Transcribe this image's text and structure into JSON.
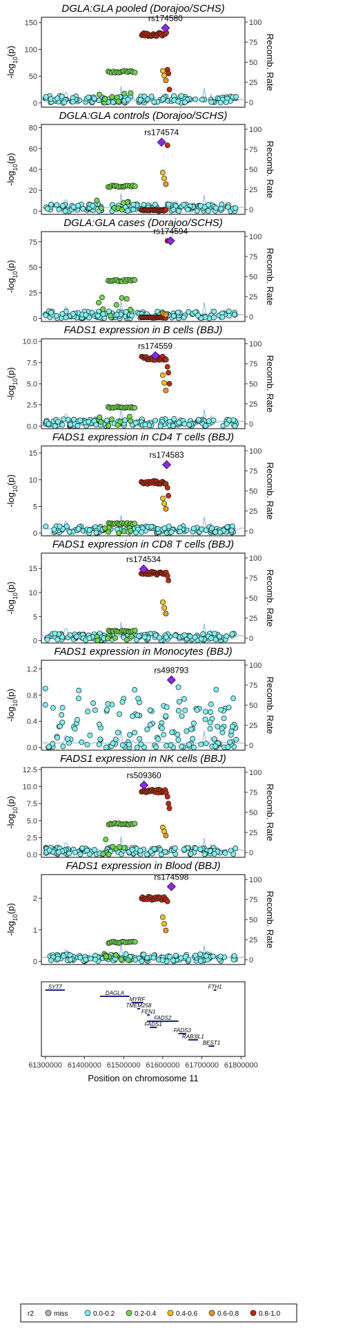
{
  "chart_data": {
    "type": "scatter",
    "x_axis": {
      "label": "Position on chromosome 11",
      "range": [
        61290000,
        61810000
      ],
      "ticks": [
        61300000,
        61400000,
        61500000,
        61600000,
        61700000,
        61800000
      ]
    },
    "y_axis_left_label": "-log10(p)",
    "y_axis_right_label": "Recomb. Rate",
    "right_axis_ticks": [
      0,
      25,
      50,
      75,
      100
    ],
    "legend": {
      "title": "r2",
      "entries": [
        {
          "label": "miss",
          "color": "#b5b5b5"
        },
        {
          "label": "0.0-0.2",
          "color": "#7ff0f0"
        },
        {
          "label": "0.2-0.4",
          "color": "#6fd84a"
        },
        {
          "label": "0.4-0.6",
          "color": "#f2c41e"
        },
        {
          "label": "0.6-0.8",
          "color": "#f0961e"
        },
        {
          "label": "0.8-1.0",
          "color": "#c02a12"
        }
      ],
      "placement": "bottom"
    },
    "panels": [
      {
        "title": "DGLA:GLA pooled (Dorajoo/SCHS)",
        "lead_snp": "rs174580",
        "lead_x": 61607000,
        "lead_y": 140,
        "ylim": [
          -8,
          160
        ],
        "yticks": [
          0,
          50,
          100,
          150
        ],
        "clusters": {
          "green": 58,
          "green_drop": 30,
          "red_level": 128,
          "red_tail": [
            62,
            55,
            25
          ],
          "orange": 60
        }
      },
      {
        "title": "DGLA:GLA controls (Dorajoo/SCHS)",
        "lead_snp": "rs174574",
        "lead_x": 61597000,
        "lead_y": 66,
        "ylim": [
          -3,
          83
        ],
        "yticks": [
          0,
          20,
          40,
          60,
          80
        ],
        "clusters": {
          "green": 24,
          "green_drop": 12,
          "red_level": 0.5,
          "red_tail": [
            63
          ],
          "orange": 37
        }
      },
      {
        "title": "DGLA:GLA cases (Dorajoo/SCHS)",
        "lead_snp": "rs174594",
        "lead_x": 61620000,
        "lead_y": 76,
        "ylim": [
          -3,
          85
        ],
        "yticks": [
          0,
          25,
          50,
          75
        ],
        "clusters": {
          "green": 37,
          "green_drop": 22,
          "red_level": 0.5,
          "red_tail": [
            76
          ],
          "orange": 5
        }
      },
      {
        "title": "FADS1 expression in B cells (BBJ)",
        "lead_snp": "rs174559",
        "lead_x": 61581000,
        "lead_y": 8.3,
        "ylim": [
          -0.3,
          10.3
        ],
        "yticks": [
          0.0,
          2.5,
          5.0,
          7.5,
          10.0
        ],
        "clusters": {
          "green": 2.2,
          "green_drop": 1.4,
          "red_level": 8.0,
          "red_tail": [
            7.0,
            6.3,
            5.0
          ],
          "orange": 6.0
        }
      },
      {
        "title": "FADS1 expression in CD4 T cells (BBJ)",
        "lead_snp": "rs174583",
        "lead_x": 61610000,
        "lead_y": 12.8,
        "ylim": [
          -0.5,
          16.3
        ],
        "yticks": [
          0,
          5,
          10,
          15
        ],
        "clusters": {
          "green": 1.8,
          "green_drop": 1.0,
          "red_level": 9.5,
          "red_tail": [
            8.5,
            7.0
          ],
          "orange": 6.5
        }
      },
      {
        "title": "FADS1 expression in CD8 T cells (BBJ)",
        "lead_snp": "rs174534",
        "lead_x": 61551000,
        "lead_y": 14.9,
        "ylim": [
          -0.5,
          18.2
        ],
        "yticks": [
          0,
          5,
          10,
          15
        ],
        "clusters": {
          "green": 2.0,
          "green_drop": 1.2,
          "red_level": 14.0,
          "red_tail": [
            13.5,
            12.5
          ],
          "orange": 8.0
        }
      },
      {
        "title": "FADS1 expression in Monocytes (BBJ)",
        "lead_snp": "rs498793",
        "lead_x": 61622000,
        "lead_y": 1.03,
        "ylim": [
          -0.04,
          1.33
        ],
        "yticks": [
          0.0,
          0.4,
          0.8,
          1.2
        ],
        "clusters": {
          "green": 0,
          "green_drop": 0,
          "red_level": 0,
          "red_tail": [],
          "orange": 0
        }
      },
      {
        "title": "FADS1 expression in NK cells (BBJ)",
        "lead_snp": "rs509360",
        "lead_x": 61552000,
        "lead_y": 10.2,
        "ylim": [
          -0.4,
          12.8
        ],
        "yticks": [
          0.0,
          2.5,
          5.0,
          7.5,
          10.0,
          12.5
        ],
        "clusters": {
          "green": 4.5,
          "green_drop": 2.5,
          "red_level": 9.3,
          "red_tail": [
            8.5,
            7.5,
            6.8
          ],
          "orange": 4.0
        }
      },
      {
        "title": "FADS1 expression in Blood (BBJ)",
        "lead_snp": "rs174598",
        "lead_x": 61622000,
        "lead_y": 2.37,
        "ylim": [
          -0.1,
          2.75
        ],
        "yticks": [
          0,
          1,
          2
        ],
        "clusters": {
          "green": 0.6,
          "green_drop": 0.4,
          "red_level": 2.0,
          "red_tail": [
            1.9
          ],
          "orange": 1.4
        }
      }
    ],
    "genes": [
      {
        "name": "SYT7",
        "start": 61300000,
        "end": 61350000,
        "row": 0
      },
      {
        "name": "FTH1",
        "start": 61730000,
        "end": 61735000,
        "row": 0
      },
      {
        "name": "DAGLA",
        "start": 61440000,
        "end": 61515000,
        "row": 1
      },
      {
        "name": "MYRF",
        "start": 61520000,
        "end": 61550000,
        "row": 2
      },
      {
        "name": "TMEM258",
        "start": 61535000,
        "end": 61542000,
        "row": 3
      },
      {
        "name": "FEN1",
        "start": 61560000,
        "end": 61565000,
        "row": 4
      },
      {
        "name": "FADS2",
        "start": 61560000,
        "end": 61640000,
        "row": 5
      },
      {
        "name": "FADS1",
        "start": 61567000,
        "end": 61585000,
        "row": 6
      },
      {
        "name": "FADS3",
        "start": 61640000,
        "end": 61660000,
        "row": 7
      },
      {
        "name": "RAB3IL1",
        "start": 61665000,
        "end": 61690000,
        "row": 8
      },
      {
        "name": "BEST1",
        "start": 61717000,
        "end": 61732000,
        "row": 9
      }
    ]
  }
}
